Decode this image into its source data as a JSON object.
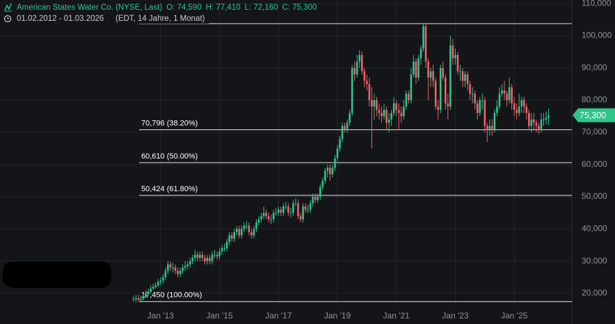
{
  "chart_data": {
    "type": "candlestick",
    "title": "American States Water Co. (NYSE, Last)",
    "ohlc_labels": [
      "O: 74,590",
      "H: 77,410",
      "L: 72,160",
      "C: 75,300"
    ],
    "date_range": "01.02.2012 - 01.03.2026",
    "subtitle": "(EDT, 14 Jahre, 1 Monat)",
    "last_price_label": "75,300",
    "up_color": "#2fc58a",
    "down_color": "#f0616d",
    "grid": true,
    "x": [
      "2012-02",
      "2012-03",
      "2012-04",
      "2012-05",
      "2012-06",
      "2012-07",
      "2012-08",
      "2012-09",
      "2012-10",
      "2012-11",
      "2012-12",
      "2013-01",
      "2013-02",
      "2013-03",
      "2013-04",
      "2013-05",
      "2013-06",
      "2013-07",
      "2013-08",
      "2013-09",
      "2013-10",
      "2013-11",
      "2013-12",
      "2014-01",
      "2014-02",
      "2014-03",
      "2014-04",
      "2014-05",
      "2014-06",
      "2014-07",
      "2014-08",
      "2014-09",
      "2014-10",
      "2014-11",
      "2014-12",
      "2015-01",
      "2015-02",
      "2015-03",
      "2015-04",
      "2015-05",
      "2015-06",
      "2015-07",
      "2015-08",
      "2015-09",
      "2015-10",
      "2015-11",
      "2015-12",
      "2016-01",
      "2016-02",
      "2016-03",
      "2016-04",
      "2016-05",
      "2016-06",
      "2016-07",
      "2016-08",
      "2016-09",
      "2016-10",
      "2016-11",
      "2016-12",
      "2017-01",
      "2017-02",
      "2017-03",
      "2017-04",
      "2017-05",
      "2017-06",
      "2017-07",
      "2017-08",
      "2017-09",
      "2017-10",
      "2017-11",
      "2017-12",
      "2018-01",
      "2018-02",
      "2018-03",
      "2018-04",
      "2018-05",
      "2018-06",
      "2018-07",
      "2018-08",
      "2018-09",
      "2018-10",
      "2018-11",
      "2018-12",
      "2019-01",
      "2019-02",
      "2019-03",
      "2019-04",
      "2019-05",
      "2019-06",
      "2019-07",
      "2019-08",
      "2019-09",
      "2019-10",
      "2019-11",
      "2019-12",
      "2020-01",
      "2020-02",
      "2020-03",
      "2020-04",
      "2020-05",
      "2020-06",
      "2020-07",
      "2020-08",
      "2020-09",
      "2020-10",
      "2020-11",
      "2020-12",
      "2021-01",
      "2021-02",
      "2021-03",
      "2021-04",
      "2021-05",
      "2021-06",
      "2021-07",
      "2021-08",
      "2021-09",
      "2021-10",
      "2021-11",
      "2021-12",
      "2022-01",
      "2022-02",
      "2022-03",
      "2022-04",
      "2022-05",
      "2022-06",
      "2022-07",
      "2022-08",
      "2022-09",
      "2022-10",
      "2022-11",
      "2022-12",
      "2023-01",
      "2023-02",
      "2023-03",
      "2023-04",
      "2023-05",
      "2023-06",
      "2023-07",
      "2023-08",
      "2023-09",
      "2023-10",
      "2023-11",
      "2023-12",
      "2024-01",
      "2024-02",
      "2024-03",
      "2024-04",
      "2024-05",
      "2024-06",
      "2024-07",
      "2024-08",
      "2024-09",
      "2024-10",
      "2024-11",
      "2024-12",
      "2025-01",
      "2025-02",
      "2025-03",
      "2025-04",
      "2025-05",
      "2025-06",
      "2025-07",
      "2025-08",
      "2025-09",
      "2025-10",
      "2025-11",
      "2025-12",
      "2026-01",
      "2026-02",
      "2026-03"
    ],
    "open": [
      18,
      18.2,
      18.5,
      18,
      18.3,
      19,
      20,
      20.5,
      21.5,
      22,
      22.5,
      23.5,
      24,
      25,
      27,
      29,
      28,
      28,
      27,
      26,
      27,
      28,
      28.5,
      29,
      30,
      31,
      32,
      31,
      32,
      31,
      30,
      31,
      30,
      32,
      32,
      31.5,
      33,
      34,
      34,
      36,
      38,
      37,
      39,
      40,
      38,
      40,
      41,
      41,
      39,
      38,
      40,
      42,
      43,
      44,
      45,
      44,
      43,
      43,
      45,
      45,
      46,
      45,
      47,
      47,
      45,
      45,
      48,
      48,
      44,
      43,
      47,
      46,
      46,
      48,
      50,
      49,
      50,
      53,
      55,
      58,
      59,
      57,
      59,
      62,
      65,
      68,
      72,
      71,
      73,
      76,
      90,
      88,
      92,
      94,
      89,
      86,
      85,
      80,
      78,
      80,
      77,
      76,
      75,
      77,
      73,
      74,
      76,
      79,
      77,
      76,
      75,
      78,
      82,
      80,
      88,
      92,
      87,
      93,
      96,
      103,
      92,
      87,
      89,
      86,
      78,
      77,
      90,
      87,
      79,
      78,
      97,
      93,
      94,
      89,
      89,
      86,
      88,
      85,
      82,
      82,
      79,
      76,
      80,
      80,
      72,
      71,
      72,
      71,
      76,
      78,
      82,
      83,
      82,
      80,
      84,
      79,
      77,
      76,
      78,
      80,
      78,
      76,
      72,
      74,
      73,
      72,
      71,
      74,
      74,
      74.59
    ],
    "high": [
      19.2,
      19.5,
      19.5,
      19.3,
      20,
      21,
      21.5,
      22.5,
      23,
      23.5,
      24.5,
      25,
      26,
      28,
      30,
      30,
      29.5,
      29,
      28,
      28,
      29,
      30,
      30,
      31,
      32,
      33.5,
      33,
      33,
      33,
      32,
      32,
      32,
      33,
      33.5,
      33,
      34,
      35,
      35.5,
      37,
      39,
      39,
      40,
      41,
      41,
      41,
      42,
      42.5,
      42,
      40,
      41,
      43,
      44,
      45,
      47,
      46,
      45,
      44.5,
      46,
      46.5,
      47,
      47,
      48,
      48.5,
      48,
      46.5,
      49,
      49.5,
      49,
      45,
      48,
      48,
      47.5,
      49,
      51,
      51,
      51,
      54,
      56,
      59,
      60,
      60,
      60,
      63,
      66,
      69,
      73,
      73,
      74,
      77,
      91,
      92,
      94,
      95.5,
      95,
      90,
      88,
      87,
      84,
      82,
      81,
      79,
      78,
      79,
      78,
      76,
      77,
      81,
      80,
      79,
      78,
      80,
      83,
      83,
      90,
      94,
      93,
      94,
      97,
      104,
      104,
      93,
      90,
      91,
      87,
      80,
      91,
      92,
      88,
      82,
      100,
      99,
      96,
      95,
      91,
      90,
      89,
      89,
      86,
      84,
      83,
      80,
      81,
      82,
      81,
      73,
      74,
      74,
      77,
      80,
      84,
      85,
      86,
      83,
      87,
      85,
      81,
      79,
      82,
      81,
      81,
      79,
      77,
      76,
      76,
      74,
      73,
      76,
      76,
      76.5,
      77.41
    ],
    "low": [
      17.45,
      17.2,
      17.5,
      17.5,
      17.8,
      18.5,
      19.5,
      20,
      21,
      21.5,
      22,
      22.5,
      23,
      24,
      26,
      27,
      26.5,
      26,
      25,
      25,
      26,
      27,
      27.5,
      28,
      29,
      30,
      30,
      30,
      30,
      29,
      29,
      29,
      29,
      31,
      30.5,
      30.5,
      32,
      33,
      33,
      35,
      36,
      36,
      38,
      37,
      37,
      39,
      40,
      38,
      37,
      37,
      39,
      41,
      42,
      43,
      43,
      42,
      41.5,
      42,
      44,
      44,
      44,
      44,
      46,
      44,
      43.5,
      44,
      47,
      43,
      42,
      42,
      45,
      45,
      45,
      47,
      48,
      48,
      49,
      52,
      54,
      56,
      55,
      56,
      58,
      61,
      64,
      67,
      70,
      70,
      72,
      75,
      86,
      87,
      90,
      88,
      84,
      83,
      78,
      65,
      74,
      75,
      74,
      73,
      74,
      71,
      70,
      72,
      75,
      75,
      71,
      73,
      74,
      77,
      79,
      79,
      87,
      85,
      86,
      91,
      95,
      90,
      80,
      84,
      84,
      77,
      74,
      76,
      86,
      77,
      74,
      77,
      91,
      91,
      88,
      86,
      84,
      84,
      83,
      80,
      79,
      77,
      74,
      75,
      77,
      70,
      67,
      69,
      69,
      70,
      75,
      77,
      81,
      80,
      78,
      79,
      77,
      75,
      74,
      75,
      76,
      76,
      74,
      71,
      70,
      71,
      70,
      69.5,
      70,
      72,
      72.5,
      72.16
    ],
    "close": [
      18.2,
      18.5,
      18,
      18.3,
      19,
      20,
      20.5,
      21.5,
      22,
      22.5,
      23.5,
      24,
      25,
      27,
      29,
      28,
      28,
      27,
      26,
      27,
      28,
      28.5,
      29,
      30,
      31,
      32,
      31,
      32,
      31,
      30,
      31,
      30,
      32,
      32,
      31.5,
      33,
      34,
      34,
      36,
      38,
      37,
      39,
      40,
      38,
      40,
      41,
      41,
      39,
      38,
      40,
      42,
      43,
      44,
      45,
      44,
      43,
      43,
      45,
      45,
      46,
      45,
      47,
      47,
      45,
      45,
      48,
      48,
      44,
      43,
      47,
      46,
      46,
      48,
      50,
      49,
      50,
      53,
      55,
      58,
      59,
      57,
      59,
      62,
      65,
      68,
      72,
      71,
      73,
      76,
      90,
      88,
      92,
      94,
      89,
      86,
      85,
      80,
      78,
      80,
      77,
      76,
      75,
      77,
      73,
      74,
      76,
      79,
      77,
      76,
      75,
      78,
      82,
      80,
      88,
      92,
      87,
      93,
      96,
      103,
      92,
      87,
      89,
      86,
      78,
      77,
      90,
      87,
      79,
      78,
      97,
      93,
      94,
      89,
      89,
      86,
      88,
      85,
      82,
      82,
      79,
      76,
      80,
      80,
      72,
      71,
      72,
      71,
      76,
      78,
      82,
      83,
      82,
      80,
      84,
      79,
      77,
      76,
      78,
      80,
      78,
      76,
      72,
      74,
      73,
      72,
      71,
      74,
      74,
      74.59,
      75.3
    ],
    "ylim": [
      16.1,
      111.1
    ],
    "yticks": [
      {
        "value": 20,
        "label": "20,000"
      },
      {
        "value": 30,
        "label": "30,000"
      },
      {
        "value": 40,
        "label": "40,000"
      },
      {
        "value": 50,
        "label": "50,000"
      },
      {
        "value": 60,
        "label": "60,000"
      },
      {
        "value": 70,
        "label": "70,000"
      },
      {
        "value": 80,
        "label": "80,000"
      },
      {
        "value": 90,
        "label": "90,000"
      },
      {
        "value": 100,
        "label": "100,000"
      },
      {
        "value": 110,
        "label": "110,000"
      }
    ],
    "xticks": [
      {
        "value": "2013-01",
        "label": "Jan '13"
      },
      {
        "value": "2015-01",
        "label": "Jan '15"
      },
      {
        "value": "2017-01",
        "label": "Jan '17"
      },
      {
        "value": "2019-01",
        "label": "Jan '19"
      },
      {
        "value": "2021-01",
        "label": "Jan '21"
      },
      {
        "value": "2023-01",
        "label": "Jan '23"
      },
      {
        "value": "2025-01",
        "label": "Jan '25"
      }
    ],
    "levels": [
      {
        "value": 103.77
      },
      {
        "value": 70.796,
        "label": "70,796 (38.20%)"
      },
      {
        "value": 60.61,
        "label": "60,610 (50.00%)"
      },
      {
        "value": 50.424,
        "label": "50,424 (61.80%)"
      },
      {
        "value": 17.45,
        "label": "17,450 (100.00%)"
      }
    ]
  }
}
